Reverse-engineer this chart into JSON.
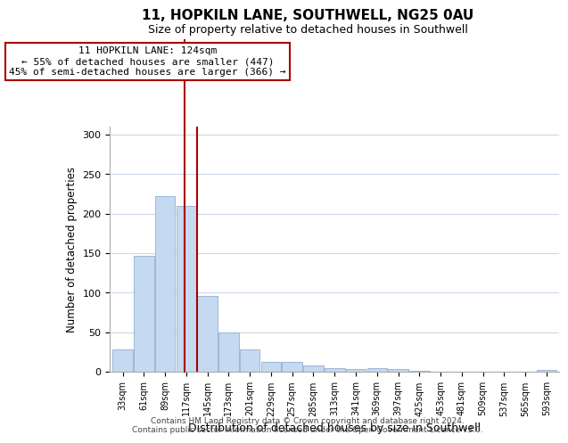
{
  "title": "11, HOPKILN LANE, SOUTHWELL, NG25 0AU",
  "subtitle": "Size of property relative to detached houses in Southwell",
  "xlabel": "Distribution of detached houses by size in Southwell",
  "ylabel": "Number of detached properties",
  "bar_color": "#c5d9f0",
  "bar_edge_color": "#9ab8d8",
  "categories": [
    "33sqm",
    "61sqm",
    "89sqm",
    "117sqm",
    "145sqm",
    "173sqm",
    "201sqm",
    "229sqm",
    "257sqm",
    "285sqm",
    "313sqm",
    "341sqm",
    "369sqm",
    "397sqm",
    "425sqm",
    "453sqm",
    "481sqm",
    "509sqm",
    "537sqm",
    "565sqm",
    "593sqm"
  ],
  "values": [
    28,
    146,
    222,
    210,
    96,
    50,
    28,
    12,
    12,
    8,
    5,
    3,
    5,
    3,
    1,
    0,
    0,
    0,
    0,
    0,
    2
  ],
  "property_bin_index": 3,
  "property_label": "11 HOPKILN LANE: 124sqm",
  "annotation_line1": "← 55% of detached houses are smaller (447)",
  "annotation_line2": "45% of semi-detached houses are larger (366) →",
  "vline_color": "#aa0000",
  "annotation_box_edge": "#aa0000",
  "ylim": [
    0,
    310
  ],
  "yticks": [
    0,
    50,
    100,
    150,
    200,
    250,
    300
  ],
  "footer_line1": "Contains HM Land Registry data © Crown copyright and database right 2024.",
  "footer_line2": "Contains public sector information licensed under the Open Government Licence v3.0.",
  "background_color": "#ffffff",
  "grid_color": "#ccd8e8"
}
